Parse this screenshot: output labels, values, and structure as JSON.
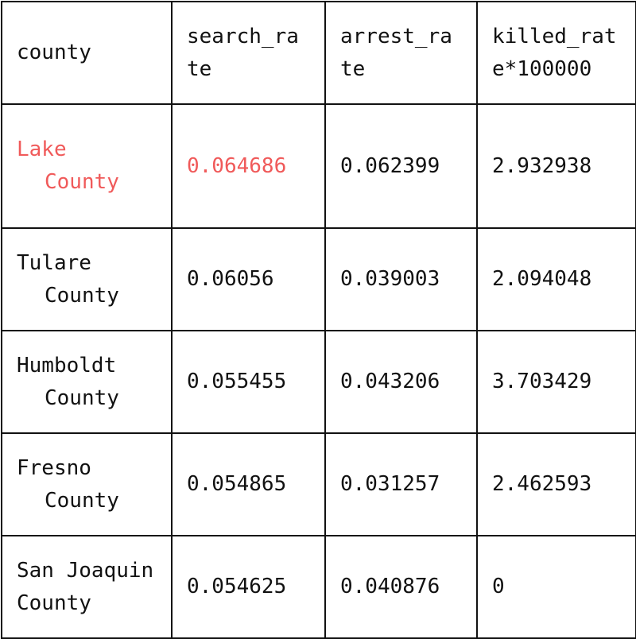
{
  "table": {
    "headers": {
      "county": "county",
      "search_rate": "search_rate",
      "arrest_rate": "arrest_rate",
      "killed_rate": "killed_rate*100000"
    },
    "rows": [
      {
        "county_line1": "Lake",
        "county_line2": "County",
        "search_rate": "0.064686",
        "arrest_rate": "0.062399",
        "killed_rate": "2.932938"
      },
      {
        "county_line1": "Tulare",
        "county_line2": "County",
        "search_rate": "0.06056",
        "arrest_rate": "0.039003",
        "killed_rate": "2.094048"
      },
      {
        "county_line1": "Humboldt",
        "county_line2": "County",
        "search_rate": "0.055455",
        "arrest_rate": "0.043206",
        "killed_rate": "3.703429"
      },
      {
        "county_line1": "Fresno",
        "county_line2": "County",
        "search_rate": "0.054865",
        "arrest_rate": "0.031257",
        "killed_rate": "2.462593"
      },
      {
        "county": "San Joaquin County",
        "search_rate": "0.054625",
        "arrest_rate": "0.040876",
        "killed_rate": "0"
      }
    ],
    "highlight_color": "#f05a5a"
  }
}
